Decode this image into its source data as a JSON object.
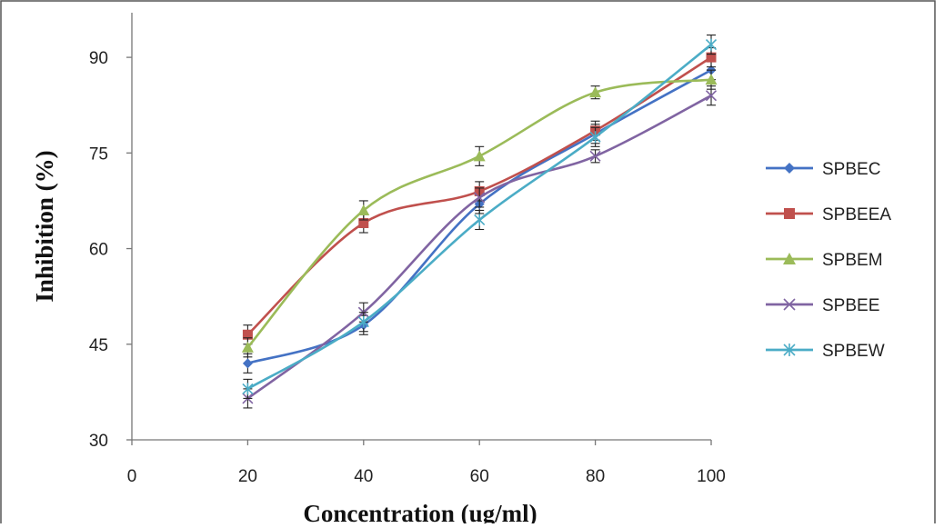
{
  "chart_data": {
    "type": "line",
    "xlabel": "Concentration  (ug/ml)",
    "ylabel": "Inhibition  (%)",
    "xlim": [
      0,
      100
    ],
    "ylim": [
      30,
      97
    ],
    "x_ticks": [
      "0",
      "20",
      "40",
      "60",
      "80",
      "100"
    ],
    "y_ticks": [
      "30",
      "45",
      "60",
      "75",
      "90"
    ],
    "x_tick_values": [
      0,
      20,
      40,
      60,
      80,
      100
    ],
    "y_tick_values": [
      30,
      45,
      60,
      75,
      90
    ],
    "grid": false,
    "smooth": true,
    "error_bars": true,
    "legend_position": "right",
    "x": [
      20,
      40,
      60,
      80,
      100
    ],
    "series": [
      {
        "name": "SPBEC",
        "color": "#4472c4",
        "marker": "diamond",
        "values": [
          42,
          48,
          67,
          78,
          88
        ],
        "errors": [
          1.5,
          1.5,
          1.5,
          1.5,
          1.5
        ]
      },
      {
        "name": "SPBEEA",
        "color": "#c0504d",
        "marker": "square",
        "values": [
          46.5,
          64,
          69,
          78.5,
          90
        ],
        "errors": [
          1.5,
          1.5,
          1.5,
          1.5,
          1.5
        ]
      },
      {
        "name": "SPBEM",
        "color": "#9bbb59",
        "marker": "triangle",
        "values": [
          44.5,
          66,
          74.5,
          84.5,
          86.5
        ],
        "errors": [
          1.5,
          1.5,
          1.5,
          1,
          1.5
        ]
      },
      {
        "name": "SPBEE",
        "color": "#8064a2",
        "marker": "x",
        "values": [
          36.5,
          50,
          68,
          74.5,
          84
        ],
        "errors": [
          1.5,
          1.5,
          1.5,
          1,
          1.5
        ]
      },
      {
        "name": "SPBEW",
        "color": "#4bacc6",
        "marker": "star",
        "values": [
          38,
          48.5,
          64.5,
          77.5,
          92
        ],
        "errors": [
          1.5,
          1.5,
          1.5,
          1.5,
          1.5
        ]
      }
    ]
  }
}
